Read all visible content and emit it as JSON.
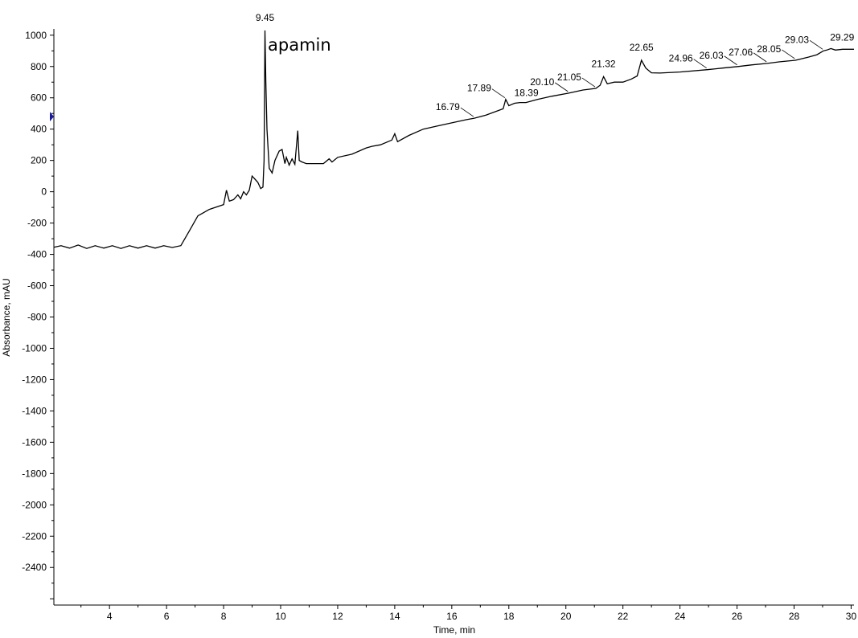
{
  "chart_data": {
    "type": "line",
    "title": "",
    "xlabel": "Time, min",
    "ylabel": "Absorbance, mAU",
    "xlim": [
      2.05,
      30.1
    ],
    "ylim": [
      -2640,
      1040
    ],
    "x_ticks": [
      4,
      6,
      8,
      10,
      12,
      14,
      16,
      18,
      20,
      22,
      24,
      26,
      28,
      30
    ],
    "y_ticks": [
      1000,
      800,
      600,
      400,
      200,
      0,
      -200,
      -400,
      -600,
      -800,
      -1000,
      -1200,
      -1400,
      -1600,
      -1800,
      -2000,
      -2200,
      -2400
    ],
    "grid": false,
    "line_color": "#000000",
    "marker": {
      "value": 480,
      "color": "#1a1aa0"
    },
    "series": [
      {
        "x": [
          2.05,
          2.3,
          2.6,
          2.9,
          3.2,
          3.5,
          3.8,
          4.1,
          4.4,
          4.7,
          5.0,
          5.3,
          5.6,
          5.9,
          6.2,
          6.5,
          6.8,
          7.1,
          7.5,
          8.0,
          8.1,
          8.2,
          8.35,
          8.5,
          8.6,
          8.7,
          8.8,
          8.9,
          9.0,
          9.1,
          9.2,
          9.3,
          9.38,
          9.42,
          9.45,
          9.48,
          9.52,
          9.6,
          9.7,
          9.8,
          9.95,
          10.05,
          10.15,
          10.2,
          10.3,
          10.4,
          10.5,
          10.6,
          10.65,
          10.75,
          10.9,
          11.2,
          11.5,
          11.7,
          11.8,
          12.0,
          12.5,
          13.0,
          13.2,
          13.5,
          13.9,
          14.0,
          14.1,
          14.5,
          15.0,
          15.5,
          16.0,
          16.5,
          16.79,
          17.2,
          17.8,
          17.89,
          18.0,
          18.2,
          18.39,
          18.6,
          19.0,
          19.5,
          20.1,
          20.6,
          21.05,
          21.2,
          21.32,
          21.45,
          21.7,
          22.0,
          22.3,
          22.5,
          22.65,
          22.8,
          23.0,
          23.3,
          24.0,
          24.96,
          25.5,
          26.03,
          26.5,
          27.06,
          27.5,
          28.05,
          28.5,
          28.8,
          29.03,
          29.15,
          29.29,
          29.45,
          29.7,
          30.1
        ],
        "y": [
          -355,
          -345,
          -360,
          -340,
          -362,
          -345,
          -360,
          -345,
          -362,
          -345,
          -360,
          -345,
          -360,
          -345,
          -356,
          -344,
          -250,
          -154,
          -113,
          -82,
          10,
          -60,
          -50,
          -20,
          -45,
          0,
          -20,
          10,
          100,
          80,
          60,
          20,
          30,
          200,
          1030,
          700,
          400,
          150,
          120,
          200,
          260,
          270,
          180,
          220,
          170,
          210,
          175,
          390,
          200,
          190,
          180,
          180,
          180,
          210,
          190,
          220,
          240,
          280,
          290,
          300,
          330,
          370,
          320,
          360,
          400,
          420,
          440,
          460,
          470,
          490,
          530,
          590,
          550,
          565,
          570,
          570,
          590,
          610,
          630,
          650,
          660,
          680,
          735,
          690,
          700,
          700,
          720,
          740,
          840,
          790,
          760,
          758,
          765,
          780,
          790,
          800,
          810,
          820,
          830,
          840,
          860,
          875,
          900,
          905,
          915,
          905,
          910,
          910
        ]
      }
    ],
    "peak_labels": [
      "9.45",
      "16.79",
      "17.89",
      "18.39",
      "20.10",
      "21.05",
      "21.32",
      "22.65",
      "24.96",
      "26.03",
      "27.06",
      "28.05",
      "29.03",
      "29.29"
    ],
    "annotations": [
      "apamin"
    ]
  }
}
